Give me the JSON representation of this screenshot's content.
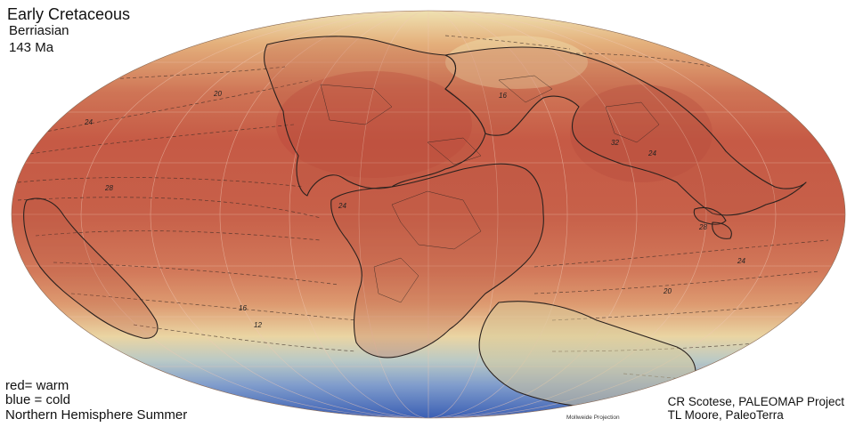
{
  "header": {
    "title": "Early Cretaceous",
    "stage": "Berriasian",
    "age": "143 Ma"
  },
  "legend": {
    "warm": "red= warm",
    "cold": "blue = cold",
    "season": "Northern Hemisphere Summer"
  },
  "projection_label": "Mollweide Projection",
  "credits": {
    "line1": "CR Scotese, PALEOMAP Project",
    "line2": "TL Moore, PaleoTerra"
  },
  "isotherm_labels": [
    "20",
    "24",
    "28",
    "16",
    "24",
    "32",
    "24",
    "28",
    "24",
    "20",
    "16",
    "12"
  ],
  "colors": {
    "warm": "#c65a45",
    "mid": "#e7c994",
    "cold": "#3f66b7",
    "pale": "#ecd9a9"
  }
}
